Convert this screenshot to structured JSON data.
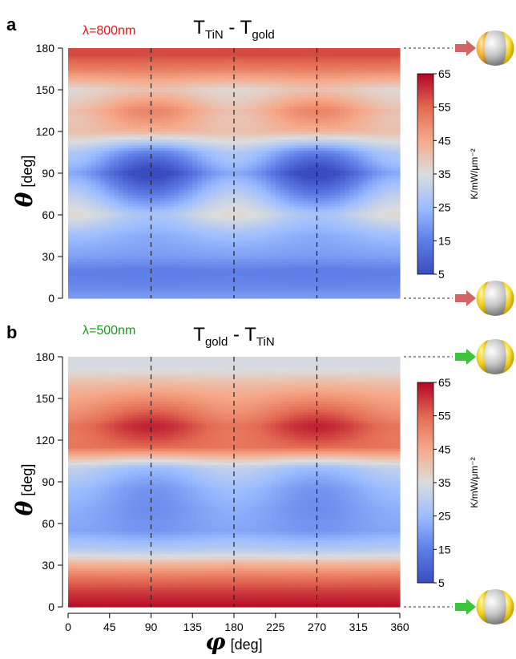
{
  "chart_data": [
    {
      "panel": "a",
      "type": "heatmap",
      "wavelength_label": "λ=800nm",
      "wavelength_color": "#e8151b",
      "title": {
        "main1": "T",
        "sub1": "TiN",
        "sep": " - ",
        "main2": "T",
        "sub2": "gold"
      },
      "xlabel": "",
      "ylabel_symbol": "θ",
      "ylabel_unit": "[deg]",
      "xlim": [
        0,
        360
      ],
      "ylim": [
        0,
        180
      ],
      "yticks": [
        "0",
        "30",
        "60",
        "90",
        "120",
        "150",
        "180"
      ],
      "vlines_x": [
        90,
        180,
        270
      ],
      "colorbar": {
        "ticks": [
          "5",
          "15",
          "25",
          "35",
          "45",
          "55",
          "65"
        ],
        "range": [
          5,
          65
        ],
        "label": "K/mW/μm⁻²"
      },
      "arrow_color": "#cf6665",
      "field_description_values": {
        "theta_profile": [
          [
            0,
            20
          ],
          [
            10,
            16
          ],
          [
            20,
            15
          ],
          [
            30,
            20
          ],
          [
            45,
            24
          ],
          [
            60,
            32
          ],
          [
            75,
            22
          ],
          [
            90,
            12
          ],
          [
            105,
            22
          ],
          [
            120,
            42
          ],
          [
            135,
            46
          ],
          [
            150,
            38
          ],
          [
            165,
            52
          ],
          [
            175,
            58
          ],
          [
            180,
            58
          ]
        ],
        "phi_modulation_amplitude": 8
      }
    },
    {
      "panel": "b",
      "type": "heatmap",
      "wavelength_label": "λ=500nm",
      "wavelength_color": "#1a9a1a",
      "title": {
        "main1": "T",
        "sub1": "gold",
        "sep": " - ",
        "main2": "T",
        "sub2": "TiN"
      },
      "xlabel_symbol": "φ",
      "xlabel_unit": "[deg]",
      "ylabel_symbol": "θ",
      "ylabel_unit": "[deg]",
      "xlim": [
        0,
        360
      ],
      "ylim": [
        0,
        180
      ],
      "xticks": [
        "0",
        "45",
        "90",
        "135",
        "180",
        "225",
        "270",
        "315",
        "360"
      ],
      "yticks": [
        "0",
        "30",
        "60",
        "90",
        "120",
        "150",
        "180"
      ],
      "vlines_x": [
        90,
        180,
        270
      ],
      "colorbar": {
        "ticks": [
          "5",
          "15",
          "25",
          "35",
          "45",
          "55",
          "65"
        ],
        "range": [
          5,
          65
        ],
        "label": "K/mW/μm⁻²"
      },
      "arrow_color": "#3cc43c",
      "field_description_values": {
        "theta_profile": [
          [
            0,
            64
          ],
          [
            10,
            60
          ],
          [
            20,
            54
          ],
          [
            30,
            44
          ],
          [
            40,
            30
          ],
          [
            55,
            20
          ],
          [
            70,
            20
          ],
          [
            85,
            22
          ],
          [
            100,
            28
          ],
          [
            115,
            54
          ],
          [
            130,
            58
          ],
          [
            145,
            50
          ],
          [
            160,
            42
          ],
          [
            172,
            34
          ],
          [
            180,
            34
          ]
        ],
        "phi_modulation_amplitude": 6
      }
    }
  ]
}
